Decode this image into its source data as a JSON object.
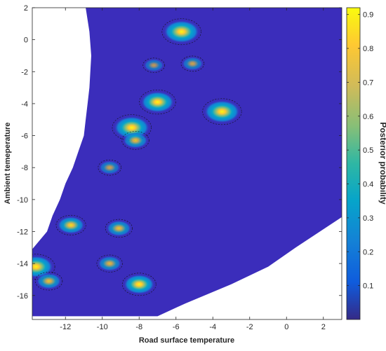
{
  "chart_data": {
    "type": "heatmap",
    "xlabel": "Road surface temperature",
    "ylabel": "Ambient temeperature",
    "xlim": [
      -13.8,
      3
    ],
    "ylim": [
      -17.5,
      2
    ],
    "x_ticks": [
      -12,
      -10,
      -8,
      -6,
      -4,
      -2,
      0,
      2
    ],
    "y_ticks": [
      2,
      0,
      -2,
      -4,
      -6,
      -8,
      -10,
      -12,
      -14,
      -16
    ],
    "background_value": 0.02,
    "background_color": "#3b2dbb",
    "domain_polygon": [
      [
        -10.9,
        2
      ],
      [
        3,
        2
      ],
      [
        3,
        -11.1
      ],
      [
        0.5,
        -13.0
      ],
      [
        -1.0,
        -14.2
      ],
      [
        -3.0,
        -15.3
      ],
      [
        -5.5,
        -16.5
      ],
      [
        -7.0,
        -17.3
      ],
      [
        -13.8,
        -17.3
      ],
      [
        -13.8,
        -13.1
      ],
      [
        -13.0,
        -12.0
      ],
      [
        -12.7,
        -11.0
      ],
      [
        -12.3,
        -10.0
      ],
      [
        -12.0,
        -9.0
      ],
      [
        -11.6,
        -8.0
      ],
      [
        -11.3,
        -7.0
      ],
      [
        -11.0,
        -6.0
      ],
      [
        -10.9,
        -5.0
      ],
      [
        -10.8,
        -4.0
      ],
      [
        -10.7,
        -3.0
      ],
      [
        -10.6,
        -1.0
      ],
      [
        -10.7,
        0.5
      ],
      [
        -10.9,
        2
      ]
    ],
    "peaks": [
      {
        "x": -5.7,
        "y": 0.5,
        "value": 0.9
      },
      {
        "x": -8.4,
        "y": -5.5,
        "value": 0.9
      },
      {
        "x": -7.0,
        "y": -3.9,
        "value": 0.8
      },
      {
        "x": -3.5,
        "y": -4.5,
        "value": 0.9
      },
      {
        "x": -13.6,
        "y": -14.2,
        "value": 0.85
      },
      {
        "x": -11.7,
        "y": -11.6,
        "value": 0.55
      },
      {
        "x": -9.1,
        "y": -11.8,
        "value": 0.45
      },
      {
        "x": -8.0,
        "y": -15.3,
        "value": 0.7
      },
      {
        "x": -12.9,
        "y": -15.1,
        "value": 0.45
      },
      {
        "x": -9.6,
        "y": -14.0,
        "value": 0.4
      },
      {
        "x": -8.2,
        "y": -6.3,
        "value": 0.45
      },
      {
        "x": -9.6,
        "y": -8.0,
        "value": 0.3
      },
      {
        "x": -5.1,
        "y": -1.5,
        "value": 0.3
      },
      {
        "x": -7.2,
        "y": -1.6,
        "value": 0.25
      }
    ],
    "colorbar": {
      "label": "Posterior probability",
      "min": 0,
      "max": 0.92,
      "ticks": [
        0.1,
        0.2,
        0.3,
        0.4,
        0.5,
        0.6,
        0.7,
        0.8,
        0.9
      ]
    }
  }
}
